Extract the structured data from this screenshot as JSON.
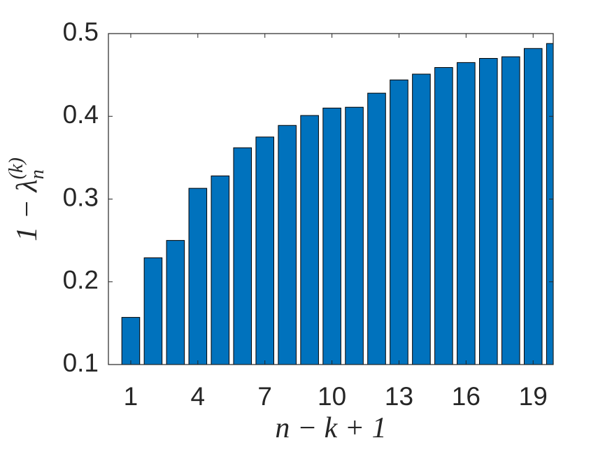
{
  "chart_data": {
    "type": "bar",
    "xlabel": "n − k + 1",
    "ylabel": {
      "base": "1 − λ",
      "sub": "n",
      "sup": "(k)"
    },
    "x": [
      1,
      2,
      3,
      4,
      5,
      6,
      7,
      8,
      9,
      10,
      11,
      12,
      13,
      14,
      15,
      16,
      17,
      18,
      19,
      20
    ],
    "values": [
      0.157,
      0.229,
      0.25,
      0.313,
      0.328,
      0.362,
      0.375,
      0.389,
      0.401,
      0.41,
      0.411,
      0.428,
      0.444,
      0.451,
      0.459,
      0.465,
      0.47,
      0.472,
      0.482,
      0.488
    ],
    "color": "#0072bd",
    "xlim": [
      0,
      19.9
    ],
    "xticks": [
      1,
      4,
      7,
      10,
      13,
      16,
      19
    ],
    "ylim": [
      0.1,
      0.5
    ],
    "yticks": [
      0.1,
      0.2,
      0.3,
      0.4,
      0.5
    ],
    "grid": false
  }
}
